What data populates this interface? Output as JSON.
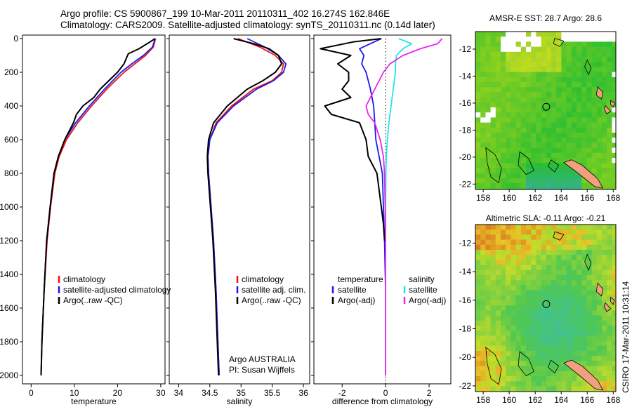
{
  "header": {
    "line1": "Argo profile: CS 5900867_199 10-Mar-2011 20110311_402 16.274S 162.846E",
    "line2": "Climatology: CARS2009. Satellite-adjusted climatology: synTS_20110311.nc (0.14d later)"
  },
  "credit": "CSIRO 17-Mar-2011 10:31:14",
  "colors": {
    "red": "#ee1111",
    "blue": "#1a1aee",
    "black": "#000000",
    "cyan": "#22e6e6",
    "magenta": "#ee22ee"
  },
  "chart_data": [
    {
      "type": "line",
      "xlabel": "temperature",
      "ylim": [
        2050,
        0
      ],
      "xlim": [
        -2,
        31
      ],
      "xticks": [
        0,
        10,
        20,
        30
      ],
      "yticks": [
        0,
        200,
        400,
        600,
        800,
        1000,
        1200,
        1400,
        1600,
        1800,
        2000
      ],
      "legend": [
        "climatology",
        "satellite-adjusted climatology",
        "Argo(..raw -QC)"
      ],
      "series": [
        {
          "name": "climatology",
          "color": "red",
          "depth": [
            0,
            50,
            100,
            150,
            200,
            300,
            400,
            500,
            600,
            700,
            800,
            1000,
            1200,
            1500,
            1800,
            2000
          ],
          "values": [
            28.8,
            28.3,
            26.5,
            24,
            21.5,
            17.5,
            14,
            10.8,
            8.2,
            6.5,
            5.5,
            4.5,
            3.7,
            3,
            2.5,
            2.3
          ]
        },
        {
          "name": "satellite-adjusted climatology",
          "color": "blue",
          "depth": [
            0,
            50,
            100,
            150,
            200,
            300,
            400,
            500,
            600,
            700,
            800,
            1000,
            1200,
            1500,
            1800,
            2000
          ],
          "values": [
            28.7,
            28.1,
            26,
            23.3,
            20.8,
            17,
            13.5,
            10.3,
            7.8,
            6.3,
            5.3,
            4.4,
            3.6,
            3,
            2.5,
            2.3
          ]
        },
        {
          "name": "Argo(..raw -QC)",
          "color": "black",
          "depth": [
            0,
            20,
            60,
            90,
            120,
            150,
            200,
            250,
            300,
            350,
            400,
            450,
            500,
            600,
            700,
            800,
            1000,
            1200,
            1500,
            1800,
            2000
          ],
          "values": [
            28.7,
            27.5,
            25,
            22.5,
            22,
            21.5,
            20,
            18,
            16,
            14.5,
            12,
            10.5,
            9.8,
            7.8,
            6.3,
            5.3,
            4.4,
            3.6,
            3,
            2.5,
            2.3
          ]
        }
      ]
    },
    {
      "type": "line",
      "xlabel": "salinity",
      "ylim": [
        2050,
        0
      ],
      "xlim": [
        33.85,
        36.1
      ],
      "xticks": [
        34,
        34.5,
        35,
        35.5,
        36
      ],
      "legend": [
        "climatology",
        "satellite adj. clim.",
        "Argo(..raw -QC)"
      ],
      "series": [
        {
          "name": "climatology",
          "color": "red",
          "depth": [
            0,
            50,
            100,
            150,
            200,
            250,
            300,
            400,
            500,
            600,
            700,
            800,
            1000,
            1200,
            1500,
            1800,
            2000
          ],
          "values": [
            34.95,
            35.3,
            35.55,
            35.68,
            35.65,
            35.5,
            35.2,
            34.85,
            34.6,
            34.5,
            34.47,
            34.48,
            34.52,
            34.56,
            34.6,
            34.63,
            34.65
          ]
        },
        {
          "name": "satellite adj. clim.",
          "color": "blue",
          "depth": [
            0,
            50,
            100,
            150,
            200,
            250,
            300,
            400,
            500,
            600,
            700,
            800,
            1000,
            1200,
            1500,
            1800,
            2000
          ],
          "values": [
            35.1,
            35.38,
            35.6,
            35.72,
            35.68,
            35.52,
            35.25,
            34.88,
            34.62,
            34.5,
            34.47,
            34.48,
            34.52,
            34.56,
            34.6,
            34.63,
            34.65
          ]
        },
        {
          "name": "Argo(..raw -QC)",
          "color": "black",
          "depth": [
            0,
            30,
            60,
            100,
            150,
            200,
            250,
            300,
            400,
            500,
            600,
            700,
            800,
            1000,
            1200,
            1500,
            1800,
            2000
          ],
          "values": [
            34.88,
            35.2,
            35.45,
            35.6,
            35.65,
            35.55,
            35.35,
            35.1,
            34.78,
            34.56,
            34.48,
            34.46,
            34.47,
            34.51,
            34.55,
            34.59,
            34.62,
            34.64
          ]
        }
      ],
      "annotation": [
        "Argo AUSTRALIA",
        "PI: Susan Wijffels"
      ]
    },
    {
      "type": "line",
      "xlabel": "difference from climatology",
      "ylim": [
        2050,
        0
      ],
      "xlim": [
        -3.3,
        3
      ],
      "xticks": [
        -2,
        0,
        2
      ],
      "legend": [
        "temperature",
        "satellite",
        "Argo(-adj)",
        "salinity",
        "satellite",
        "Argo(-adj)"
      ],
      "series": [
        {
          "name": "temperature satellite",
          "color": "blue",
          "depth": [
            0,
            30,
            60,
            100,
            150,
            200,
            300,
            400,
            500,
            600,
            700,
            800,
            1000,
            1200,
            1500,
            1800,
            2000
          ],
          "values": [
            -0.2,
            -0.7,
            -1.2,
            -1,
            -1.1,
            -0.9,
            -0.7,
            -0.55,
            -0.5,
            -0.45,
            -0.3,
            -0.15,
            -0.1,
            -0.05,
            0,
            0,
            0
          ]
        },
        {
          "name": "temperature Argo(-adj)",
          "color": "black",
          "depth": [
            0,
            20,
            60,
            100,
            150,
            200,
            250,
            300,
            350,
            400,
            450,
            500,
            600,
            700,
            800,
            900,
            1000,
            1100,
            1200
          ],
          "values": [
            -0.2,
            -1.5,
            -3,
            -1.6,
            -2.2,
            -1.7,
            -1.7,
            -2,
            -1.6,
            -2.8,
            -2.5,
            -1.2,
            -0.9,
            -0.8,
            -0.4,
            -0.3,
            -0.2,
            -0.1,
            -0.05
          ]
        },
        {
          "name": "salinity satellite",
          "color": "cyan",
          "depth": [
            0,
            30,
            60,
            100,
            150,
            200,
            300,
            400,
            500,
            600,
            700,
            800,
            1000,
            1200,
            1500,
            1800,
            2000
          ],
          "values": [
            0.6,
            1.2,
            0.8,
            0.5,
            0.45,
            0.45,
            0.35,
            0.25,
            0.15,
            0.08,
            0.03,
            0.01,
            0,
            0,
            0,
            0,
            0
          ]
        },
        {
          "name": "salinity Argo(-adj)",
          "color": "magenta",
          "depth": [
            0,
            30,
            60,
            100,
            150,
            200,
            250,
            300,
            350,
            400,
            450,
            500,
            600,
            700,
            800,
            1000,
            1200,
            1500,
            1800,
            2000
          ],
          "values": [
            2.6,
            2.4,
            1.6,
            0.8,
            0.2,
            -0.1,
            -0.3,
            -0.5,
            -0.7,
            -0.9,
            -0.8,
            -0.5,
            -0.25,
            -0.1,
            -0.05,
            -0.02,
            0,
            0,
            0,
            0
          ]
        }
      ]
    },
    {
      "type": "heatmap",
      "title": "AMSR-E SST: 28.7 Argo: 28.6",
      "xlim": [
        157.4,
        168.2
      ],
      "ylim": [
        -22.4,
        -10.7
      ],
      "xticks": [
        158,
        160,
        162,
        164,
        166,
        168
      ],
      "yticks": [
        -12,
        -14,
        -16,
        -18,
        -20,
        -22
      ],
      "marker": [
        162.846,
        -16.274
      ]
    },
    {
      "type": "heatmap",
      "title": "Altimetric SLA: -0.11 Argo: -0.21",
      "xlim": [
        157.4,
        168.2
      ],
      "ylim": [
        -22.4,
        -10.7
      ],
      "xticks": [
        158,
        160,
        162,
        164,
        166,
        168
      ],
      "yticks": [
        -12,
        -14,
        -16,
        -18,
        -20,
        -22
      ],
      "marker": [
        162.846,
        -16.274
      ]
    }
  ]
}
